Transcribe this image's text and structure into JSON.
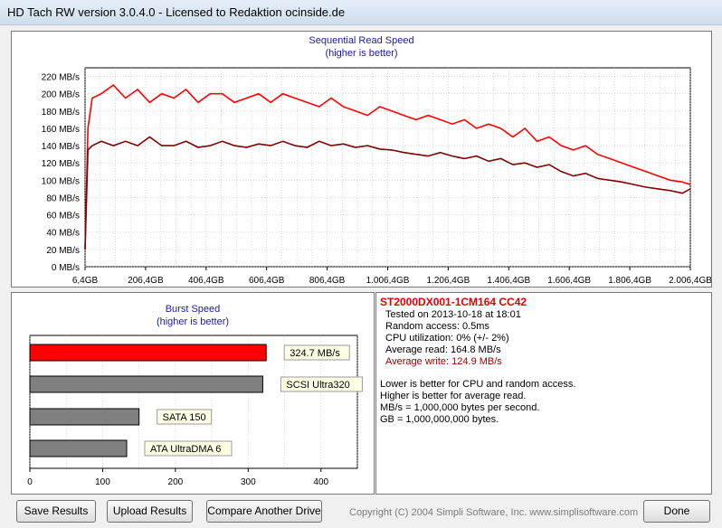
{
  "window": {
    "title": "HD Tach RW version 3.0.4.0 - Licensed to Redaktion ocinside.de"
  },
  "sequential": {
    "title": "Sequential Read Speed",
    "subtitle": "(higher is better)"
  },
  "burst": {
    "title": "Burst Speed",
    "subtitle": "(higher is better)"
  },
  "info": {
    "drive": "ST2000DX001-1CM164 CC42",
    "tested": "Tested on 2013-10-18 at 18:01",
    "random_access": "Random access: 0.5ms",
    "cpu": "CPU utilization: 0% (+/- 2%)",
    "avg_read": "Average read: 164.8 MB/s",
    "avg_write": "Average write: 124.9 MB/s",
    "notes": [
      "Lower is better for CPU and random access.",
      "Higher is better for average read.",
      "MB/s = 1,000,000 bytes per second.",
      "GB = 1,000,000,000 bytes."
    ]
  },
  "buttons": {
    "save": "Save Results",
    "upload": "Upload Results",
    "compare": "Compare Another Drive",
    "done": "Done"
  },
  "copyright": "Copyright (C) 2004 Simpli Software, Inc. www.simplisoftware.com",
  "colors": {
    "read": "#ff0000",
    "write": "#800000",
    "bar_gray": "#808080",
    "title_blue": "#1a1aa8"
  },
  "chart_data": [
    {
      "type": "line",
      "title": "Sequential Read Speed",
      "subtitle": "(higher is better)",
      "xlabel": "",
      "ylabel": "",
      "x_ticks": [
        "6,4GB",
        "206,4GB",
        "406,4GB",
        "606,4GB",
        "806,4GB",
        "1.006,4GB",
        "1.206,4GB",
        "1.406,4GB",
        "1.606,4GB",
        "1.806,4GB",
        "2.006,4GB"
      ],
      "x_tick_values": [
        6.4,
        206.4,
        406.4,
        606.4,
        806.4,
        1006.4,
        1206.4,
        1406.4,
        1606.4,
        1806.4,
        2006.4
      ],
      "y_ticks": [
        "0 MB/s",
        "20 MB/s",
        "40 MB/s",
        "60 MB/s",
        "80 MB/s",
        "100 MB/s",
        "120 MB/s",
        "140 MB/s",
        "160 MB/s",
        "180 MB/s",
        "200 MB/s",
        "220 MB/s"
      ],
      "xlim": [
        6.4,
        2006.4
      ],
      "ylim": [
        0,
        230
      ],
      "grid": true,
      "series": [
        {
          "name": "Average read",
          "color": "#ff0000",
          "x": [
            6.4,
            16,
            30,
            60,
            100,
            140,
            180,
            220,
            260,
            300,
            340,
            380,
            420,
            460,
            500,
            540,
            580,
            620,
            660,
            700,
            740,
            780,
            820,
            860,
            900,
            940,
            980,
            1020,
            1060,
            1100,
            1140,
            1180,
            1220,
            1260,
            1300,
            1340,
            1380,
            1420,
            1460,
            1500,
            1540,
            1580,
            1620,
            1660,
            1700,
            1740,
            1780,
            1820,
            1860,
            1900,
            1940,
            1980,
            2006.4
          ],
          "y": [
            20,
            160,
            195,
            200,
            210,
            195,
            205,
            190,
            200,
            195,
            205,
            190,
            200,
            200,
            190,
            195,
            200,
            190,
            200,
            195,
            190,
            185,
            195,
            185,
            180,
            175,
            185,
            180,
            175,
            170,
            175,
            170,
            165,
            170,
            160,
            165,
            160,
            150,
            160,
            145,
            150,
            140,
            135,
            140,
            130,
            125,
            120,
            115,
            110,
            105,
            100,
            98,
            95
          ]
        },
        {
          "name": "Average write",
          "color": "#800000",
          "x": [
            6.4,
            16,
            30,
            60,
            100,
            140,
            180,
            220,
            260,
            300,
            340,
            380,
            420,
            460,
            500,
            540,
            580,
            620,
            660,
            700,
            740,
            780,
            820,
            860,
            900,
            940,
            980,
            1020,
            1060,
            1100,
            1140,
            1180,
            1220,
            1260,
            1300,
            1340,
            1380,
            1420,
            1460,
            1500,
            1540,
            1580,
            1620,
            1660,
            1700,
            1740,
            1780,
            1820,
            1860,
            1900,
            1940,
            1980,
            2006.4
          ],
          "y": [
            20,
            135,
            140,
            145,
            140,
            145,
            140,
            150,
            140,
            140,
            145,
            138,
            140,
            145,
            140,
            138,
            142,
            140,
            145,
            140,
            138,
            145,
            140,
            142,
            138,
            140,
            136,
            135,
            132,
            130,
            128,
            132,
            128,
            125,
            128,
            122,
            125,
            118,
            120,
            115,
            118,
            110,
            105,
            108,
            102,
            100,
            98,
            95,
            92,
            90,
            88,
            85,
            90
          ]
        }
      ]
    },
    {
      "type": "bar",
      "title": "Burst Speed",
      "subtitle": "(higher is better)",
      "orientation": "horizontal",
      "categories": [
        "324.7 MB/s",
        "SCSI Ultra320",
        "SATA 150",
        "ATA UltraDMA 6"
      ],
      "values": [
        324.7,
        320,
        150,
        133
      ],
      "colors": [
        "#ff0000",
        "#808080",
        "#808080",
        "#808080"
      ],
      "x_ticks": [
        "0",
        "100",
        "200",
        "300",
        "400"
      ],
      "xlim": [
        0,
        450
      ],
      "grid": true
    }
  ]
}
